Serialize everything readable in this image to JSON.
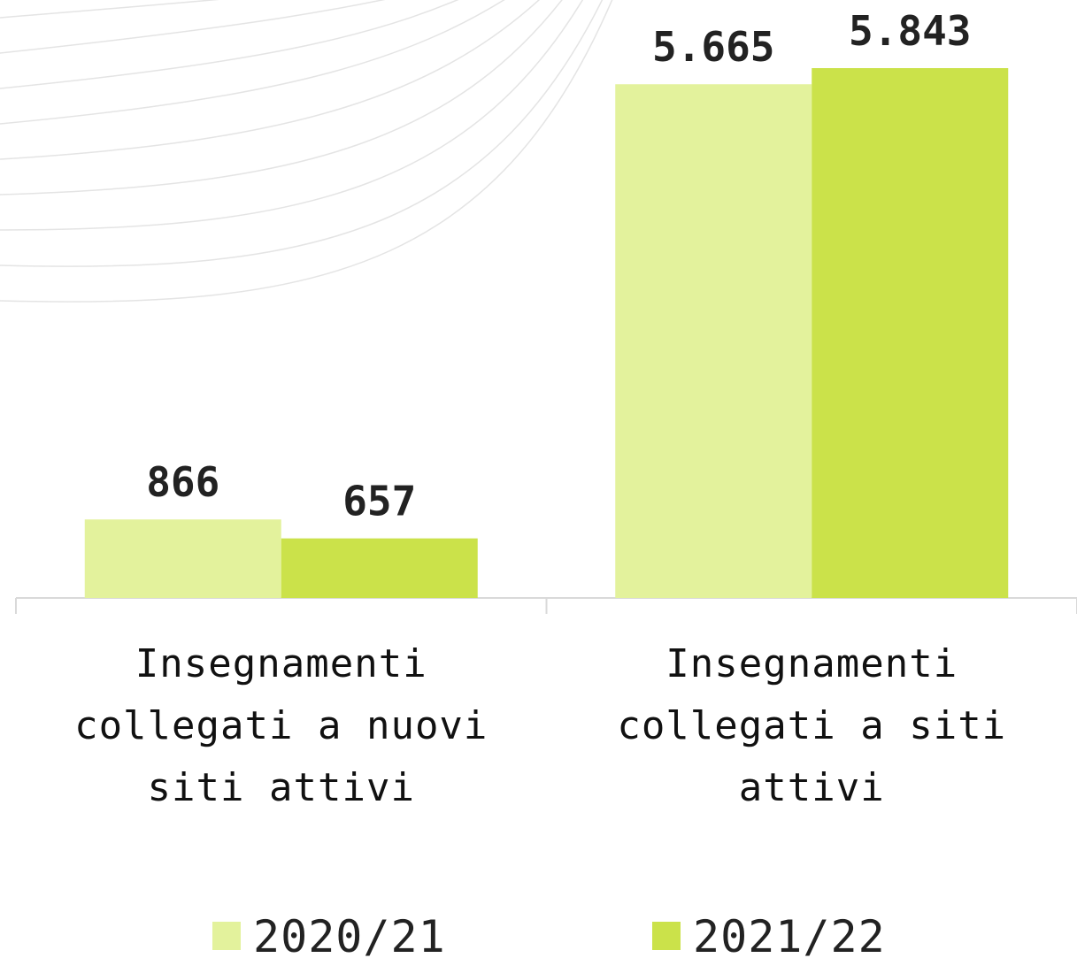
{
  "chart_data": {
    "type": "bar",
    "categories": [
      "Insegnamenti collegati a nuovi siti attivi",
      "Insegnamenti collegati a siti attivi"
    ],
    "series": [
      {
        "name": "2020/21",
        "color": "#e3f29c",
        "values": [
          866,
          5665
        ],
        "value_labels": [
          "866",
          "5.665"
        ]
      },
      {
        "name": "2021/22",
        "color": "#cbe24a",
        "values": [
          657,
          5843
        ],
        "value_labels": [
          "657",
          "5.843"
        ]
      }
    ],
    "legend": "bottom"
  }
}
